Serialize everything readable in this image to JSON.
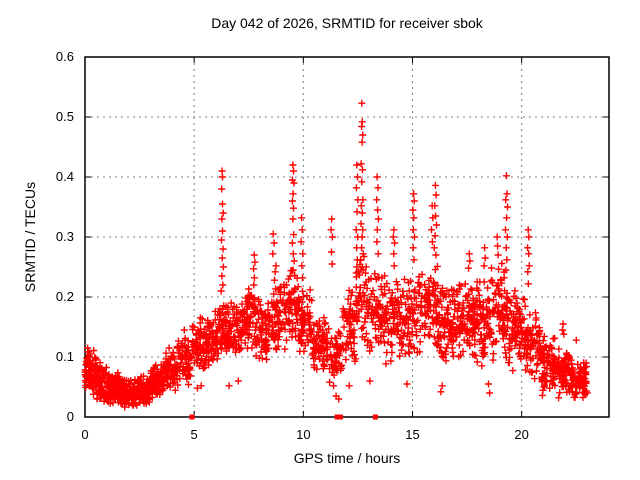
{
  "chart_data": {
    "type": "scatter",
    "title": "Day 042 of 2026, SRMTID for receiver sbok",
    "xlabel": "GPS time / hours",
    "ylabel": "SRMTID / TECUs",
    "xlim": [
      0,
      24
    ],
    "ylim": [
      0,
      0.6
    ],
    "xticks": [
      [
        0,
        "0"
      ],
      [
        5,
        "5"
      ],
      [
        10,
        "10"
      ],
      [
        15,
        "15"
      ],
      [
        20,
        "20"
      ]
    ],
    "yticks": [
      [
        0,
        "0"
      ],
      [
        0.1,
        "0.1"
      ],
      [
        0.2,
        "0.2"
      ],
      [
        0.3,
        "0.3"
      ],
      [
        0.4,
        "0.4"
      ],
      [
        0.5,
        "0.5"
      ],
      [
        0.6,
        "0.6"
      ]
    ],
    "grid": true,
    "marker": "plus",
    "colors": {
      "point": "#ff0000",
      "grid": "#7f7f7f",
      "axis": "#000000",
      "text": "#000000",
      "background": "#ffffff"
    },
    "axis_markers": [
      4.9,
      11.55,
      11.7,
      13.3
    ],
    "feature_points": [
      [
        0.12,
        0.115
      ],
      [
        0.22,
        0.105
      ],
      [
        3.85,
        0.115
      ],
      [
        4.55,
        0.145
      ],
      [
        5.15,
        0.048
      ],
      [
        5.32,
        0.052
      ],
      [
        6.24,
        0.21
      ],
      [
        6.25,
        0.295
      ],
      [
        6.26,
        0.38
      ],
      [
        6.27,
        0.33
      ],
      [
        6.27,
        0.235
      ],
      [
        6.28,
        0.41
      ],
      [
        6.29,
        0.265
      ],
      [
        6.3,
        0.4
      ],
      [
        6.3,
        0.355
      ],
      [
        6.3,
        0.31
      ],
      [
        6.31,
        0.22
      ],
      [
        6.32,
        0.28
      ],
      [
        6.33,
        0.34
      ],
      [
        6.34,
        0.25
      ],
      [
        6.6,
        0.052
      ],
      [
        7.02,
        0.06
      ],
      [
        7.72,
        0.247
      ],
      [
        7.73,
        0.22
      ],
      [
        7.75,
        0.27
      ],
      [
        7.76,
        0.232
      ],
      [
        7.78,
        0.258
      ],
      [
        8.6,
        0.272
      ],
      [
        8.62,
        0.305
      ],
      [
        8.66,
        0.29
      ],
      [
        8.68,
        0.228
      ],
      [
        8.71,
        0.242
      ],
      [
        8.75,
        0.252
      ],
      [
        9.5,
        0.395
      ],
      [
        9.5,
        0.36
      ],
      [
        9.5,
        0.29
      ],
      [
        9.52,
        0.42
      ],
      [
        9.52,
        0.33
      ],
      [
        9.53,
        0.372
      ],
      [
        9.53,
        0.245
      ],
      [
        9.54,
        0.272
      ],
      [
        9.55,
        0.41
      ],
      [
        9.55,
        0.348
      ],
      [
        9.56,
        0.304
      ],
      [
        9.57,
        0.39
      ],
      [
        9.58,
        0.26
      ],
      [
        9.9,
        0.292
      ],
      [
        9.92,
        0.332
      ],
      [
        9.93,
        0.252
      ],
      [
        9.95,
        0.312
      ],
      [
        9.96,
        0.232
      ],
      [
        9.97,
        0.272
      ],
      [
        11.27,
        0.312
      ],
      [
        11.29,
        0.275
      ],
      [
        11.3,
        0.33
      ],
      [
        11.32,
        0.255
      ],
      [
        11.33,
        0.3
      ],
      [
        11.5,
        0.035
      ],
      [
        11.62,
        0.03
      ],
      [
        12.1,
        0.052
      ],
      [
        12.42,
        0.312
      ],
      [
        12.43,
        0.382
      ],
      [
        12.44,
        0.282
      ],
      [
        12.45,
        0.42
      ],
      [
        12.46,
        0.342
      ],
      [
        12.47,
        0.262
      ],
      [
        12.48,
        0.4
      ],
      [
        12.49,
        0.3
      ],
      [
        12.5,
        0.362
      ],
      [
        12.63,
        0.262
      ],
      [
        12.64,
        0.322
      ],
      [
        12.65,
        0.422
      ],
      [
        12.66,
        0.352
      ],
      [
        12.67,
        0.484
      ],
      [
        12.67,
        0.282
      ],
      [
        12.68,
        0.523
      ],
      [
        12.68,
        0.392
      ],
      [
        12.69,
        0.458
      ],
      [
        12.69,
        0.3
      ],
      [
        12.7,
        0.492
      ],
      [
        12.7,
        0.34
      ],
      [
        12.7,
        0.25
      ],
      [
        12.71,
        0.412
      ],
      [
        12.72,
        0.47
      ],
      [
        12.72,
        0.312
      ],
      [
        12.73,
        0.362
      ],
      [
        12.74,
        0.272
      ],
      [
        13.05,
        0.06
      ],
      [
        13.36,
        0.362
      ],
      [
        13.37,
        0.292
      ],
      [
        13.38,
        0.4
      ],
      [
        13.39,
        0.312
      ],
      [
        13.4,
        0.345
      ],
      [
        13.42,
        0.382
      ],
      [
        13.43,
        0.272
      ],
      [
        13.44,
        0.33
      ],
      [
        14.12,
        0.3
      ],
      [
        14.14,
        0.272
      ],
      [
        14.15,
        0.312
      ],
      [
        14.16,
        0.252
      ],
      [
        14.18,
        0.29
      ],
      [
        14.75,
        0.055
      ],
      [
        15.02,
        0.345
      ],
      [
        15.03,
        0.282
      ],
      [
        15.04,
        0.312
      ],
      [
        15.05,
        0.372
      ],
      [
        15.06,
        0.332
      ],
      [
        15.07,
        0.262
      ],
      [
        15.08,
        0.36
      ],
      [
        15.09,
        0.3
      ],
      [
        15.87,
        0.312
      ],
      [
        15.9,
        0.352
      ],
      [
        15.91,
        0.292
      ],
      [
        15.93,
        0.332
      ],
      [
        16.0,
        0.282
      ],
      [
        16.02,
        0.352
      ],
      [
        16.04,
        0.302
      ],
      [
        16.05,
        0.386
      ],
      [
        16.06,
        0.335
      ],
      [
        16.07,
        0.27
      ],
      [
        16.08,
        0.37
      ],
      [
        16.1,
        0.32
      ],
      [
        16.3,
        0.042
      ],
      [
        16.36,
        0.052
      ],
      [
        17.57,
        0.248
      ],
      [
        17.6,
        0.272
      ],
      [
        17.63,
        0.26
      ],
      [
        18.28,
        0.252
      ],
      [
        18.3,
        0.282
      ],
      [
        18.33,
        0.265
      ],
      [
        18.48,
        0.055
      ],
      [
        18.53,
        0.04
      ],
      [
        18.88,
        0.3
      ],
      [
        18.9,
        0.285
      ],
      [
        18.92,
        0.27
      ],
      [
        19.26,
        0.312
      ],
      [
        19.27,
        0.362
      ],
      [
        19.28,
        0.245
      ],
      [
        19.29,
        0.282
      ],
      [
        19.3,
        0.402
      ],
      [
        19.31,
        0.332
      ],
      [
        19.32,
        0.262
      ],
      [
        19.33,
        0.372
      ],
      [
        19.34,
        0.3
      ],
      [
        19.35,
        0.35
      ],
      [
        20.27,
        0.282
      ],
      [
        20.28,
        0.242
      ],
      [
        20.3,
        0.312
      ],
      [
        20.31,
        0.222
      ],
      [
        20.32,
        0.272
      ],
      [
        20.33,
        0.3
      ],
      [
        20.35,
        0.252
      ],
      [
        20.95,
        0.036
      ],
      [
        21.87,
        0.145
      ],
      [
        21.9,
        0.155
      ],
      [
        21.93,
        0.138
      ],
      [
        22.5,
        0.128
      ],
      [
        22.95,
        0.09
      ],
      [
        23.0,
        0.04
      ]
    ],
    "noise_bands": [
      [
        0.0,
        0.5,
        80,
        0.03,
        0.115
      ],
      [
        0.5,
        1.0,
        80,
        0.025,
        0.095
      ],
      [
        1.0,
        1.6,
        95,
        0.02,
        0.08
      ],
      [
        1.6,
        2.4,
        110,
        0.013,
        0.065
      ],
      [
        2.4,
        3.0,
        95,
        0.018,
        0.07
      ],
      [
        3.0,
        3.6,
        80,
        0.03,
        0.09
      ],
      [
        3.6,
        4.2,
        70,
        0.04,
        0.11
      ],
      [
        4.2,
        4.9,
        70,
        0.05,
        0.14
      ],
      [
        4.9,
        5.6,
        75,
        0.07,
        0.17
      ],
      [
        5.6,
        6.1,
        55,
        0.08,
        0.18
      ],
      [
        6.1,
        6.5,
        50,
        0.09,
        0.22
      ],
      [
        6.5,
        7.2,
        70,
        0.09,
        0.2
      ],
      [
        7.2,
        7.8,
        65,
        0.1,
        0.22
      ],
      [
        7.8,
        8.5,
        70,
        0.09,
        0.21
      ],
      [
        8.5,
        9.2,
        70,
        0.1,
        0.24
      ],
      [
        9.2,
        9.8,
        60,
        0.11,
        0.26
      ],
      [
        9.8,
        10.4,
        60,
        0.1,
        0.22
      ],
      [
        10.4,
        11.2,
        75,
        0.07,
        0.17
      ],
      [
        11.2,
        11.8,
        50,
        0.05,
        0.15
      ],
      [
        11.8,
        12.4,
        60,
        0.08,
        0.22
      ],
      [
        12.4,
        12.9,
        45,
        0.12,
        0.3
      ],
      [
        12.9,
        13.6,
        60,
        0.1,
        0.26
      ],
      [
        13.6,
        14.4,
        75,
        0.08,
        0.24
      ],
      [
        14.4,
        15.2,
        75,
        0.08,
        0.24
      ],
      [
        15.2,
        16.2,
        95,
        0.1,
        0.26
      ],
      [
        16.2,
        17.0,
        85,
        0.08,
        0.22
      ],
      [
        17.0,
        17.8,
        85,
        0.09,
        0.23
      ],
      [
        17.8,
        18.6,
        85,
        0.08,
        0.24
      ],
      [
        18.6,
        19.4,
        85,
        0.08,
        0.26
      ],
      [
        19.4,
        20.2,
        80,
        0.07,
        0.22
      ],
      [
        20.2,
        20.9,
        70,
        0.06,
        0.18
      ],
      [
        20.9,
        21.6,
        75,
        0.04,
        0.14
      ],
      [
        21.6,
        22.3,
        80,
        0.03,
        0.12
      ],
      [
        22.3,
        23.0,
        80,
        0.025,
        0.1
      ]
    ],
    "seed": 13
  }
}
